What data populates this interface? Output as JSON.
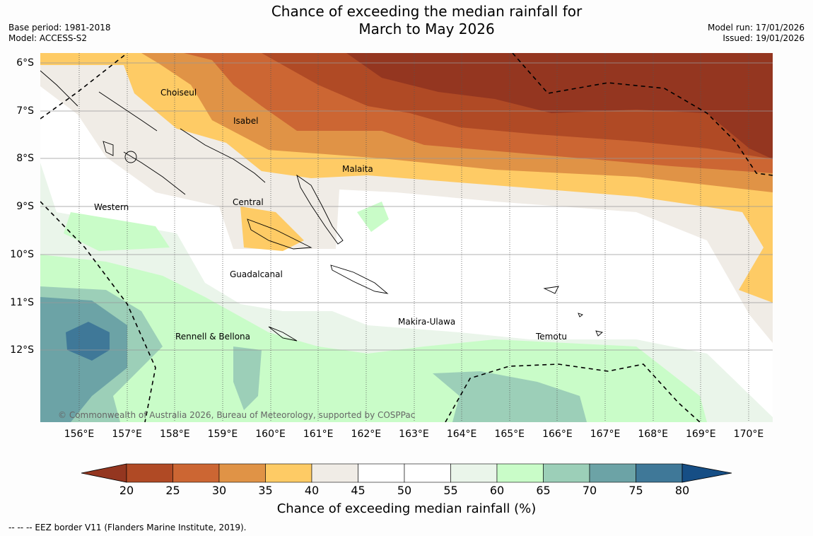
{
  "title_line1": "Chance of exceeding the median rainfall for",
  "title_line2": "March to May 2026",
  "base_period": "Base period: 1981-2018",
  "model": "Model: ACCESS-S2",
  "model_run": "Model run: 17/01/2026",
  "issued": "Issued: 19/01/2026",
  "lat_ticks": [
    "6°S",
    "7°S",
    "8°S",
    "9°S",
    "10°S",
    "11°S",
    "12°S"
  ],
  "lon_ticks": [
    "156°E",
    "157°E",
    "158°E",
    "159°E",
    "160°E",
    "161°E",
    "162°E",
    "163°E",
    "164°E",
    "165°E",
    "166°E",
    "167°E",
    "168°E",
    "169°E",
    "170°E"
  ],
  "places": {
    "choiseul": "Choiseul",
    "isabel": "Isabel",
    "malaita": "Malaita",
    "central": "Central",
    "western": "Western",
    "guadalcanal": "Guadalcanal",
    "makira": "Makira-Ulawa",
    "rennell": "Rennell & Bellona",
    "temotu": "Temotu"
  },
  "copyright": "© Commonwealth of Australia 2026, Bureau of Meteorology, supported by COSPPac",
  "colorbar": {
    "label": "Chance of exceeding median rainfall (%)",
    "ticks": [
      "20",
      "25",
      "30",
      "35",
      "40",
      "45",
      "50",
      "55",
      "60",
      "65",
      "70",
      "75",
      "80"
    ],
    "colors": [
      "#b04a25",
      "#cc6633",
      "#e09346",
      "#fecb65",
      "#f0ece6",
      "#ffffff",
      "#ffffff",
      "#eaf5ea",
      "#c9fcc8",
      "#9ccfb8",
      "#6ca3a6",
      "#3f7898"
    ],
    "under_color": "#943620",
    "over_color": "#164e85"
  },
  "footnote": "--  --  -- EEZ border V11 (Flanders Marine Institute, 2019)."
}
